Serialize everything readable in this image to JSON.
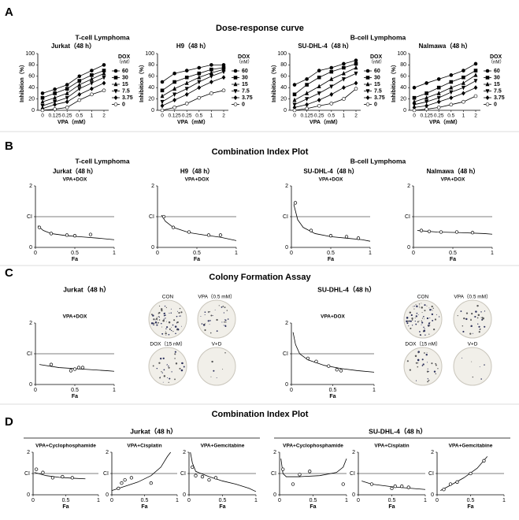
{
  "panels": [
    {
      "label": "A",
      "title": "Dose-response curve",
      "groups": [
        "T-cell Lymphoma",
        "B-cell Lymphoma"
      ]
    },
    {
      "label": "B",
      "title": "Combination Index Plot",
      "groups": [
        "T-cell Lymphoma",
        "B-cell Lymphoma"
      ]
    },
    {
      "label": "C",
      "title": "Colony Formation Assay",
      "groups": [
        "Jurkat（48 h）",
        "SU-DHL-4（48 h）"
      ]
    },
    {
      "label": "D",
      "title": "Combination Index Plot",
      "groups": [
        "Jurkat（48 h）",
        "SU-DHL-4（48 h）"
      ]
    }
  ],
  "colony": [
    {
      "labels": [
        "CON",
        "VPA（0.5 mM）",
        "DOX（15 nM）",
        "V+D"
      ]
    },
    {
      "labels": [
        "CON",
        "VPA（0.5 mM）",
        "DOX（15 nM）",
        "V+D"
      ]
    }
  ],
  "chart_data": [
    {
      "type": "line",
      "title": "Jurkat（48 h）",
      "xlabel": "VPA（mM）",
      "ylabel": "Inhibition（%）",
      "legend_title": "DOX",
      "legend_unit": "（nM）",
      "color": "#000000",
      "categories": [
        "0",
        "0.125",
        "0.25",
        "0.5",
        "1",
        "2"
      ],
      "ylim": [
        0,
        100
      ],
      "yticks": [
        0,
        20,
        40,
        60,
        80,
        100
      ],
      "series": [
        {
          "name": "60",
          "values": [
            30,
            37,
            45,
            60,
            70,
            80
          ]
        },
        {
          "name": "30",
          "values": [
            22,
            30,
            38,
            52,
            62,
            70
          ]
        },
        {
          "name": "15",
          "values": [
            15,
            22,
            30,
            45,
            55,
            65
          ]
        },
        {
          "name": "7.5",
          "values": [
            8,
            15,
            22,
            38,
            48,
            58
          ]
        },
        {
          "name": "3.75",
          "values": [
            3,
            10,
            15,
            28,
            38,
            48
          ]
        },
        {
          "name": "0",
          "values": [
            0,
            2,
            5,
            18,
            28,
            35
          ]
        }
      ]
    },
    {
      "type": "line",
      "title": "H9（48 h）",
      "xlabel": "VPA（mM）",
      "ylabel": "Inhibition（%）",
      "legend_title": "DOX",
      "legend_unit": "（nM）",
      "color": "#000000",
      "categories": [
        "0",
        "0.125",
        "0.25",
        "0.5",
        "1",
        "2"
      ],
      "ylim": [
        0,
        100
      ],
      "yticks": [
        0,
        20,
        40,
        60,
        80,
        100
      ],
      "series": [
        {
          "name": "60",
          "values": [
            50,
            65,
            70,
            75,
            80,
            80
          ]
        },
        {
          "name": "30",
          "values": [
            35,
            50,
            58,
            65,
            72,
            75
          ]
        },
        {
          "name": "15",
          "values": [
            25,
            38,
            48,
            58,
            66,
            72
          ]
        },
        {
          "name": "7.5",
          "values": [
            15,
            28,
            38,
            50,
            60,
            68
          ]
        },
        {
          "name": "3.75",
          "values": [
            8,
            18,
            28,
            40,
            50,
            58
          ]
        },
        {
          "name": "0",
          "values": [
            0,
            5,
            12,
            22,
            30,
            35
          ]
        }
      ]
    },
    {
      "type": "line",
      "title": "SU-DHL-4（48 h）",
      "xlabel": "VPA（mM）",
      "ylabel": "Inhibition（%）",
      "legend_title": "DOX",
      "legend_unit": "（nM）",
      "color": "#000000",
      "categories": [
        "0",
        "0.125",
        "0.25",
        "0.5",
        "1",
        "2"
      ],
      "ylim": [
        0,
        100
      ],
      "yticks": [
        0,
        20,
        40,
        60,
        80,
        100
      ],
      "series": [
        {
          "name": "60",
          "values": [
            45,
            55,
            70,
            75,
            82,
            88
          ]
        },
        {
          "name": "30",
          "values": [
            28,
            45,
            58,
            68,
            75,
            82
          ]
        },
        {
          "name": "15",
          "values": [
            18,
            30,
            42,
            55,
            65,
            75
          ]
        },
        {
          "name": "7.5",
          "values": [
            10,
            20,
            30,
            42,
            55,
            65
          ]
        },
        {
          "name": "3.75",
          "values": [
            5,
            10,
            18,
            28,
            40,
            48
          ]
        },
        {
          "name": "0",
          "values": [
            0,
            3,
            8,
            12,
            20,
            38
          ]
        }
      ]
    },
    {
      "type": "line",
      "title": "Nalmawa（48 h）",
      "xlabel": "VPA（mM）",
      "ylabel": "Inhibition（%）",
      "legend_title": "DOX",
      "legend_unit": "（nM）",
      "color": "#000000",
      "categories": [
        "0",
        "0.125",
        "0.25",
        "0.5",
        "1",
        "2"
      ],
      "ylim": [
        0,
        100
      ],
      "yticks": [
        0,
        20,
        40,
        60,
        80,
        100
      ],
      "series": [
        {
          "name": "60",
          "values": [
            40,
            48,
            55,
            62,
            70,
            82
          ]
        },
        {
          "name": "30",
          "values": [
            22,
            30,
            40,
            50,
            58,
            70
          ]
        },
        {
          "name": "15",
          "values": [
            15,
            22,
            30,
            40,
            48,
            62
          ]
        },
        {
          "name": "7.5",
          "values": [
            10,
            15,
            22,
            32,
            40,
            52
          ]
        },
        {
          "name": "3.75",
          "values": [
            5,
            8,
            15,
            22,
            30,
            40
          ]
        },
        {
          "name": "0",
          "values": [
            0,
            2,
            5,
            10,
            15,
            25
          ]
        }
      ]
    },
    {
      "type": "scatter",
      "title": "Jurkat（48 h）",
      "subtitle": "VPA+DOX",
      "xlabel": "Fa",
      "xlim": [
        0,
        1
      ],
      "xticks": [
        0,
        0.5,
        1
      ],
      "ylim": [
        0,
        2
      ],
      "yticks": [
        0,
        {
          "value": 1,
          "label": "CI"
        },
        2
      ],
      "reference_line": 1,
      "color": "#000000",
      "x": [
        0.05,
        0.2,
        0.4,
        0.5,
        0.7
      ],
      "values": [
        0.65,
        0.45,
        0.4,
        0.38,
        0.42
      ],
      "fit": {
        "x": [
          0.03,
          0.1,
          0.2,
          0.4,
          0.6,
          0.8,
          1
        ],
        "values": [
          0.7,
          0.55,
          0.45,
          0.38,
          0.34,
          0.3,
          0.25
        ]
      }
    },
    {
      "type": "scatter",
      "title": "H9（48 h）",
      "subtitle": "VPA+DOX",
      "xlabel": "Fa",
      "xlim": [
        0,
        1
      ],
      "xticks": [
        0,
        0.5,
        1
      ],
      "ylim": [
        0,
        2
      ],
      "yticks": [
        0,
        {
          "value": 1,
          "label": "CI"
        },
        2
      ],
      "reference_line": 1,
      "color": "#000000",
      "x": [
        0.08,
        0.2,
        0.4,
        0.65,
        0.8
      ],
      "values": [
        1.0,
        0.65,
        0.5,
        0.4,
        0.4
      ],
      "fit": {
        "x": [
          0.05,
          0.1,
          0.2,
          0.4,
          0.6,
          0.8,
          1
        ],
        "values": [
          1.05,
          0.85,
          0.65,
          0.48,
          0.4,
          0.33,
          0.22
        ]
      }
    },
    {
      "type": "scatter",
      "title": "SU-DHL-4（48 h）",
      "subtitle": "VPA+DOX",
      "xlabel": "Fa",
      "xlim": [
        0,
        1
      ],
      "xticks": [
        0,
        0.5,
        1
      ],
      "ylim": [
        0,
        2
      ],
      "yticks": [
        0,
        {
          "value": 1,
          "label": "CI"
        },
        2
      ],
      "reference_line": 1,
      "color": "#000000",
      "x": [
        0.05,
        0.25,
        0.5,
        0.7,
        0.85
      ],
      "values": [
        1.45,
        0.55,
        0.38,
        0.35,
        0.3
      ],
      "fit": {
        "x": [
          0.03,
          0.08,
          0.15,
          0.3,
          0.5,
          0.7,
          0.9,
          1
        ],
        "values": [
          1.4,
          0.9,
          0.65,
          0.45,
          0.35,
          0.3,
          0.25,
          0.2
        ]
      }
    },
    {
      "type": "scatter",
      "title": "Nalmawa（48 h）",
      "subtitle": "VPA+DOX",
      "xlabel": "Fa",
      "xlim": [
        0,
        1
      ],
      "xticks": [
        0,
        0.5,
        1
      ],
      "ylim": [
        0,
        2
      ],
      "yticks": [
        0,
        {
          "value": 1,
          "label": "CI"
        },
        2
      ],
      "reference_line": 1,
      "color": "#000000",
      "x": [
        0.1,
        0.2,
        0.35,
        0.55,
        0.75
      ],
      "values": [
        0.55,
        0.52,
        0.5,
        0.5,
        0.48
      ],
      "fit": {
        "x": [
          0.05,
          0.3,
          0.6,
          0.9,
          1
        ],
        "values": [
          0.55,
          0.5,
          0.48,
          0.45,
          0.43
        ]
      }
    },
    {
      "type": "scatter",
      "subtitle": "VPA+DOX",
      "xlabel": "Fa",
      "xlim": [
        0,
        1
      ],
      "xticks": [
        0,
        0.5,
        1
      ],
      "ylim": [
        0,
        2
      ],
      "yticks": [
        0,
        {
          "value": 1,
          "label": "CI"
        },
        2
      ],
      "reference_line": 1,
      "color": "#000000",
      "x": [
        0.2,
        0.45,
        0.5,
        0.55,
        0.6
      ],
      "values": [
        0.65,
        0.45,
        0.5,
        0.55,
        0.55
      ],
      "fit": {
        "x": [
          0.05,
          0.3,
          0.6,
          0.9,
          1
        ],
        "values": [
          0.65,
          0.55,
          0.5,
          0.45,
          0.43
        ]
      }
    },
    {
      "type": "scatter",
      "subtitle": "VPA+DOX",
      "xlabel": "Fa",
      "xlim": [
        0,
        1
      ],
      "xticks": [
        0,
        0.5,
        1
      ],
      "ylim": [
        0,
        2
      ],
      "yticks": [
        0,
        {
          "value": 1,
          "label": "CI"
        },
        2
      ],
      "reference_line": 1,
      "color": "#000000",
      "x": [
        0.2,
        0.3,
        0.45,
        0.55,
        0.6
      ],
      "values": [
        0.85,
        0.75,
        0.6,
        0.48,
        0.45
      ],
      "fit": {
        "x": [
          0.02,
          0.05,
          0.1,
          0.2,
          0.4,
          0.6,
          0.8,
          1
        ],
        "values": [
          1.7,
          1.3,
          1.0,
          0.8,
          0.62,
          0.52,
          0.45,
          0.4
        ]
      }
    },
    {
      "type": "scatter",
      "subtitle": "VPA+Cyclophosphamide",
      "xlabel": "Fa",
      "xlim": [
        0,
        1
      ],
      "xticks": [
        0,
        0.5,
        1
      ],
      "ylim": [
        0,
        2
      ],
      "yticks": [
        0,
        {
          "value": 1,
          "label": "CI"
        },
        2
      ],
      "reference_line": 1,
      "color": "#000000",
      "x": [
        0.05,
        0.15,
        0.3,
        0.45,
        0.6
      ],
      "values": [
        1.2,
        1.05,
        0.8,
        0.85,
        0.8
      ],
      "fit": {
        "x": [
          0.02,
          0.2,
          0.4,
          0.6,
          0.8
        ],
        "values": [
          1.05,
          0.9,
          0.82,
          0.78,
          0.75
        ]
      }
    },
    {
      "type": "scatter",
      "subtitle": "VPA+Cisplatin",
      "xlabel": "Fa",
      "xlim": [
        0,
        1
      ],
      "xticks": [
        0,
        0.5,
        1
      ],
      "ylim": [
        0,
        2
      ],
      "yticks": [
        0,
        {
          "value": 1,
          "label": "CI"
        },
        2
      ],
      "reference_line": 1,
      "color": "#000000",
      "x": [
        0.1,
        0.15,
        0.2,
        0.3,
        0.6
      ],
      "values": [
        0.3,
        0.55,
        0.7,
        0.8,
        0.55
      ],
      "fit": {
        "x": [
          0,
          0.2,
          0.4,
          0.6,
          0.75,
          0.85,
          0.9
        ],
        "values": [
          0.2,
          0.4,
          0.6,
          0.9,
          1.3,
          1.8,
          2
        ]
      }
    },
    {
      "type": "scatter",
      "subtitle": "VPA+Gemcitabine",
      "xlabel": "Fa",
      "xlim": [
        0,
        1
      ],
      "xticks": [
        0,
        0.5,
        1
      ],
      "ylim": [
        0,
        2
      ],
      "yticks": [
        0,
        {
          "value": 1,
          "label": "CI"
        },
        2
      ],
      "reference_line": 1,
      "color": "#000000",
      "x": [
        0.05,
        0.1,
        0.2,
        0.3,
        0.4
      ],
      "values": [
        1.3,
        0.9,
        0.85,
        0.7,
        0.8
      ],
      "fit": {
        "x": [
          0.02,
          0.05,
          0.1,
          0.3,
          0.5,
          0.7,
          0.9,
          1
        ],
        "values": [
          2.0,
          1.5,
          1.1,
          0.85,
          0.65,
          0.5,
          0.3,
          0.15
        ]
      }
    },
    {
      "type": "scatter",
      "subtitle": "VPA+Cyclophosphamide",
      "xlabel": "Fa",
      "xlim": [
        0,
        1
      ],
      "xticks": [
        0,
        0.5,
        1
      ],
      "ylim": [
        0,
        2
      ],
      "yticks": [
        0,
        {
          "value": 1,
          "label": "CI"
        },
        2
      ],
      "reference_line": 1,
      "color": "#000000",
      "x": [
        0.05,
        0.2,
        0.3,
        0.45,
        0.95
      ],
      "values": [
        1.2,
        0.5,
        0.95,
        1.1,
        0.5
      ],
      "fit": {
        "x": [
          0.02,
          0.05,
          0.1,
          0.3,
          0.6,
          0.85,
          0.95,
          1
        ],
        "values": [
          1.7,
          1.0,
          0.85,
          0.85,
          0.9,
          1.05,
          1.3,
          1.7
        ]
      }
    },
    {
      "type": "scatter",
      "subtitle": "VPA+Cisplatin",
      "xlabel": "Fa",
      "xlim": [
        0,
        1
      ],
      "xticks": [
        0,
        0.5,
        1
      ],
      "ylim": [
        0,
        2
      ],
      "yticks": [
        0,
        {
          "value": 1,
          "label": "CI"
        },
        2
      ],
      "reference_line": 1,
      "color": "#000000",
      "x": [
        0.2,
        0.5,
        0.55,
        0.65,
        0.75
      ],
      "values": [
        0.5,
        0.3,
        0.4,
        0.4,
        0.35
      ],
      "fit": {
        "x": [
          0.05,
          0.2,
          0.5,
          0.8,
          1
        ],
        "values": [
          0.65,
          0.5,
          0.38,
          0.3,
          0.25
        ]
      }
    },
    {
      "type": "scatter",
      "subtitle": "VPA+Gemcitabine",
      "xlabel": "Fa",
      "xlim": [
        0,
        1
      ],
      "xticks": [
        0,
        0.5,
        1
      ],
      "ylim": [
        0,
        2
      ],
      "yticks": [
        0,
        {
          "value": 1,
          "label": "CI"
        },
        2
      ],
      "reference_line": 1,
      "color": "#000000",
      "x": [
        0.1,
        0.2,
        0.3,
        0.5,
        0.7
      ],
      "values": [
        0.25,
        0.5,
        0.6,
        1.0,
        1.6
      ],
      "fit": {
        "x": [
          0.05,
          0.2,
          0.4,
          0.6,
          0.75
        ],
        "values": [
          0.2,
          0.45,
          0.8,
          1.25,
          1.8
        ]
      }
    }
  ]
}
